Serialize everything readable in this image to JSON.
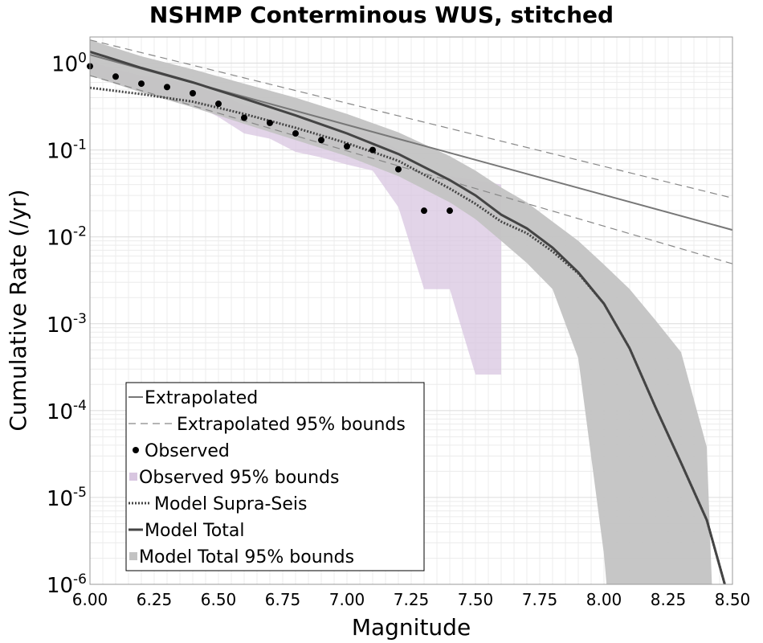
{
  "chart_data": {
    "type": "line",
    "title": "NSHMP Conterminous WUS, stitched",
    "xlabel": "Magnitude",
    "ylabel": "Cumulative Rate (/yr)",
    "xlim": [
      6.0,
      8.5
    ],
    "ylim": [
      1e-06,
      2
    ],
    "yscale": "log",
    "grid": true,
    "legend_position": "bottom-left",
    "xticks": [
      "6.00",
      "6.25",
      "6.50",
      "6.75",
      "7.00",
      "7.25",
      "7.50",
      "7.75",
      "8.00",
      "8.25",
      "8.50"
    ],
    "yticks": [
      {
        "base": "10",
        "exp": "0"
      },
      {
        "base": "10",
        "exp": "-1"
      },
      {
        "base": "10",
        "exp": "-2"
      },
      {
        "base": "10",
        "exp": "-3"
      },
      {
        "base": "10",
        "exp": "-4"
      },
      {
        "base": "10",
        "exp": "-5"
      },
      {
        "base": "10",
        "exp": "-6"
      }
    ],
    "series": [
      {
        "name": "Extrapolated",
        "style": "solid",
        "color": "#777777",
        "x": [
          6.0,
          8.5
        ],
        "y": [
          1.25,
          0.012
        ]
      },
      {
        "name": "Extrapolated 95% bounds",
        "style": "dashed",
        "color": "#888888",
        "upper": {
          "x": [
            6.0,
            8.5
          ],
          "y": [
            1.85,
            0.028
          ]
        },
        "lower": {
          "x": [
            6.0,
            8.5
          ],
          "y": [
            0.72,
            0.0049
          ]
        }
      },
      {
        "name": "Observed",
        "style": "points",
        "color": "#000000",
        "x": [
          6.0,
          6.1,
          6.2,
          6.3,
          6.4,
          6.5,
          6.6,
          6.7,
          6.8,
          6.9,
          7.0,
          7.1,
          7.2,
          7.3,
          7.4
        ],
        "y": [
          0.92,
          0.7,
          0.58,
          0.53,
          0.45,
          0.34,
          0.235,
          0.205,
          0.155,
          0.13,
          0.11,
          0.1,
          0.06,
          0.02,
          0.02
        ]
      },
      {
        "name": "Observed 95% bounds",
        "style": "band",
        "color": "#d8c6e0",
        "x": [
          6.0,
          6.1,
          6.2,
          6.3,
          6.4,
          6.5,
          6.6,
          6.7,
          6.8,
          6.9,
          7.0,
          7.1,
          7.2,
          7.3,
          7.4,
          7.5,
          7.6
        ],
        "upper": [
          1.05,
          0.85,
          0.72,
          0.65,
          0.56,
          0.44,
          0.33,
          0.28,
          0.23,
          0.2,
          0.17,
          0.15,
          0.1,
          0.055,
          0.05,
          0.045,
          0.04
        ],
        "lower": [
          0.78,
          0.58,
          0.48,
          0.42,
          0.34,
          0.24,
          0.155,
          0.135,
          0.095,
          0.082,
          0.068,
          0.058,
          0.022,
          0.0025,
          0.0025,
          0.00026,
          0.00026
        ]
      },
      {
        "name": "Model Supra-Seis",
        "style": "dotted",
        "color": "#444444",
        "x": [
          6.0,
          6.2,
          6.4,
          6.6,
          6.8,
          7.0,
          7.2,
          7.4,
          7.5,
          7.6,
          7.7,
          7.8,
          7.9,
          8.0,
          8.1,
          8.2,
          8.3,
          8.4,
          8.47
        ],
        "y": [
          0.52,
          0.44,
          0.36,
          0.26,
          0.18,
          0.12,
          0.075,
          0.036,
          0.024,
          0.015,
          0.011,
          0.0068,
          0.0038,
          0.0017,
          0.00052,
          0.00011,
          2.5e-05,
          5.5e-06,
          1e-06
        ]
      },
      {
        "name": "Model Total",
        "style": "solid",
        "color": "#444444",
        "x": [
          6.0,
          6.2,
          6.4,
          6.6,
          6.8,
          7.0,
          7.2,
          7.4,
          7.5,
          7.6,
          7.7,
          7.8,
          7.9,
          8.0,
          8.1,
          8.2,
          8.3,
          8.4,
          8.47
        ],
        "y": [
          1.35,
          0.88,
          0.6,
          0.39,
          0.25,
          0.155,
          0.09,
          0.045,
          0.03,
          0.018,
          0.0125,
          0.0075,
          0.0039,
          0.0017,
          0.00052,
          0.00011,
          2.5e-05,
          5.5e-06,
          1e-06
        ]
      },
      {
        "name": "Model Total 95% bounds",
        "style": "band",
        "color": "#c3c3c3",
        "x": [
          6.0,
          6.2,
          6.4,
          6.6,
          6.8,
          7.0,
          7.2,
          7.4,
          7.5,
          7.6,
          7.7,
          7.8,
          7.9,
          8.0,
          8.01,
          8.1,
          8.2,
          8.3,
          8.4,
          8.42
        ],
        "upper": [
          1.85,
          1.2,
          0.85,
          0.58,
          0.4,
          0.26,
          0.16,
          0.085,
          0.058,
          0.037,
          0.025,
          0.015,
          0.009,
          0.0048,
          0.0045,
          0.0025,
          0.0011,
          0.00047,
          3.8e-05,
          1e-06
        ],
        "lower": [
          0.72,
          0.46,
          0.31,
          0.2,
          0.13,
          0.085,
          0.05,
          0.025,
          0.016,
          0.009,
          0.005,
          0.0025,
          0.0004,
          2.2e-06,
          1e-06,
          1e-06,
          1e-06,
          1e-06,
          1e-06,
          1e-06
        ]
      }
    ]
  }
}
